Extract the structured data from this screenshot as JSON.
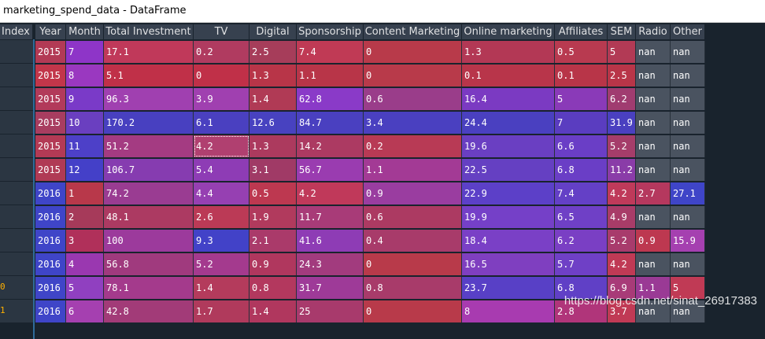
{
  "window": {
    "title": "marketing_spend_data - DataFrame"
  },
  "table": {
    "index_header": "Index",
    "columns": [
      "Year",
      "Month",
      "Total Investment",
      "TV",
      "Digital",
      "Sponsorship",
      "Content Marketing",
      "Online marketing",
      "Affiliates",
      "SEM",
      "Radio",
      "Other"
    ],
    "index_labels": [
      "",
      "",
      "",
      "",
      "",
      "",
      "",
      "",
      "",
      "",
      "0",
      "1"
    ],
    "rows": [
      [
        "2015",
        "7",
        "17.1",
        "0.2",
        "2.5",
        "7.4",
        "0",
        "1.3",
        "0.5",
        "5",
        "nan",
        "nan"
      ],
      [
        "2015",
        "8",
        "5.1",
        "0",
        "1.3",
        "1.1",
        "0",
        "0.1",
        "0.1",
        "2.5",
        "nan",
        "nan"
      ],
      [
        "2015",
        "9",
        "96.3",
        "3.9",
        "1.4",
        "62.8",
        "0.6",
        "16.4",
        "5",
        "6.2",
        "nan",
        "nan"
      ],
      [
        "2015",
        "10",
        "170.2",
        "6.1",
        "12.6",
        "84.7",
        "3.4",
        "24.4",
        "7",
        "31.9",
        "nan",
        "nan"
      ],
      [
        "2015",
        "11",
        "51.2",
        "4.2",
        "1.3",
        "14.2",
        "0.2",
        "19.6",
        "6.6",
        "5.2",
        "nan",
        "nan"
      ],
      [
        "2015",
        "12",
        "106.7",
        "5.4",
        "3.1",
        "56.7",
        "1.1",
        "22.5",
        "6.8",
        "11.2",
        "nan",
        "nan"
      ],
      [
        "2016",
        "1",
        "74.2",
        "4.4",
        "0.5",
        "4.2",
        "0.9",
        "22.9",
        "7.4",
        "4.2",
        "2.7",
        "27.1"
      ],
      [
        "2016",
        "2",
        "48.1",
        "2.6",
        "1.9",
        "11.7",
        "0.6",
        "19.9",
        "6.5",
        "4.9",
        "nan",
        "nan"
      ],
      [
        "2016",
        "3",
        "100",
        "9.3",
        "2.1",
        "41.6",
        "0.4",
        "18.4",
        "6.2",
        "5.2",
        "0.9",
        "15.9"
      ],
      [
        "2016",
        "4",
        "56.8",
        "5.2",
        "0.9",
        "24.3",
        "0",
        "16.5",
        "5.7",
        "4.2",
        "nan",
        "nan"
      ],
      [
        "2016",
        "5",
        "78.1",
        "1.4",
        "0.8",
        "31.7",
        "0.8",
        "23.7",
        "6.8",
        "6.9",
        "1.1",
        "5"
      ],
      [
        "2016",
        "6",
        "42.8",
        "1.7",
        "1.4",
        "25",
        "0",
        "8",
        "2.8",
        "3.7",
        "nan",
        "nan"
      ]
    ],
    "colors": [
      [
        "#b23a55",
        "#8e35c8",
        "#c0395a",
        "#b03b60",
        "#a63d5a",
        "#c03a55",
        "#b83a4a",
        "#b33855",
        "#b83a50",
        "#b23a55",
        "#4a5360",
        "#4a5360"
      ],
      [
        "#c2364a",
        "#9a38c0",
        "#c03048",
        "#c03048",
        "#b83548",
        "#b83548",
        "#b83a4a",
        "#b8354a",
        "#b83548",
        "#b83548",
        "#4a5360",
        "#4a5360"
      ],
      [
        "#b23a5a",
        "#7a3ac8",
        "#a040b0",
        "#a040b0",
        "#b03a55",
        "#8a3ac8",
        "#9a3d8a",
        "#7b3ac2",
        "#8a3ab8",
        "#a03c70",
        "#4a5360",
        "#4a5360"
      ],
      [
        "#a83d60",
        "#6a3fc0",
        "#4840c0",
        "#4a40c0",
        "#4842c0",
        "#4a40c0",
        "#4a40c0",
        "#4a40c0",
        "#5a3dc0",
        "#4a40c0",
        "#4a5360",
        "#4a5360"
      ],
      [
        "#b33a55",
        "#4d40c8",
        "#a43b82",
        "#b04070",
        "#ac3a5e",
        "#ac3a62",
        "#b83a55",
        "#6a3fc2",
        "#6a3ec6",
        "#a53d6a",
        "#4a5360",
        "#4a5360"
      ],
      [
        "#b03a55",
        "#4440c8",
        "#863cb0",
        "#8e3cb5",
        "#a03a66",
        "#9a3cb0",
        "#a33a95",
        "#6540c2",
        "#6a3ec6",
        "#8a3ca8",
        "#4a5360",
        "#4a5360"
      ],
      [
        "#3f45c8",
        "#b8384a",
        "#9a3c92",
        "#9640b2",
        "#bd3850",
        "#c0395a",
        "#9a3da0",
        "#5c40c8",
        "#6440c6",
        "#bf3a5a",
        "#b5385e",
        "#3f45c8"
      ],
      [
        "#3f45c8",
        "#a63a5a",
        "#ac3a62",
        "#bb3a56",
        "#b13a5d",
        "#a83b78",
        "#ac3a62",
        "#7540c8",
        "#6f40c6",
        "#a83c68",
        "#4a5360",
        "#4a5360"
      ],
      [
        "#3f45c8",
        "#b0305a",
        "#9c3a9c",
        "#4242c8",
        "#aa3a6a",
        "#8e3cb5",
        "#a83b6a",
        "#7a40c6",
        "#7a3fc4",
        "#a83b6c",
        "#bd3850",
        "#a540b0"
      ],
      [
        "#3f45c8",
        "#9a38b0",
        "#a03a7e",
        "#a43a8e",
        "#b0375e",
        "#a23b7e",
        "#b83a4a",
        "#7f3fc0",
        "#6f40c6",
        "#c03a55",
        "#4a5360",
        "#4a5360"
      ],
      [
        "#3f45c8",
        "#9040c0",
        "#a43a8c",
        "#b43b5c",
        "#b3385e",
        "#9e3a98",
        "#a83b6a",
        "#5840c6",
        "#6040c6",
        "#a83b78",
        "#9a3a95",
        "#c03a55"
      ],
      [
        "#3f45c8",
        "#a540b0",
        "#a23b78",
        "#b03a5c",
        "#b0375e",
        "#a83a6c",
        "#b83a4a",
        "#a83bb0",
        "#b0357a",
        "#c03a55",
        "#4a5360",
        "#4a5360"
      ]
    ],
    "selected": [
      4,
      3
    ]
  },
  "watermark": "https://blog.csdn.net/sinat_26917383"
}
